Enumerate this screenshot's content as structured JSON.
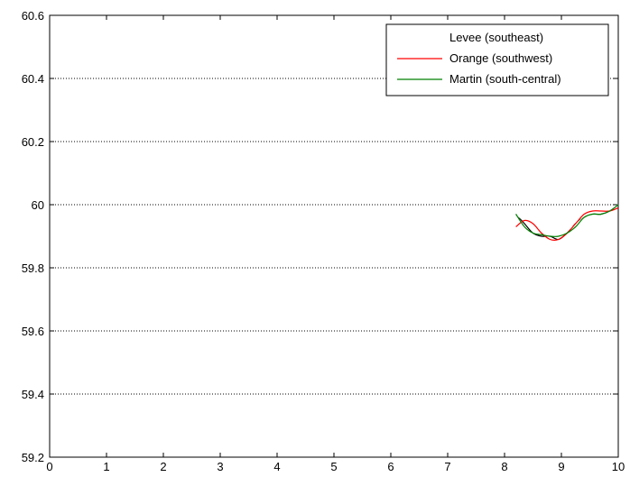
{
  "chart_data": {
    "type": "line",
    "title": "",
    "xlabel": "",
    "ylabel": "",
    "xlim": [
      0,
      10
    ],
    "ylim": [
      59.2,
      60.6
    ],
    "x_ticks": [
      0,
      1,
      2,
      3,
      4,
      5,
      6,
      7,
      8,
      9,
      10
    ],
    "x_tick_labels": [
      "0",
      "1",
      "2",
      "3",
      "4",
      "5",
      "6",
      "7",
      "8",
      "9",
      "10"
    ],
    "y_ticks": [
      59.2,
      59.4,
      59.6,
      59.8,
      60,
      60.2,
      60.4,
      60.6
    ],
    "y_tick_labels": [
      "59.2",
      "59.4",
      "59.6",
      "59.8",
      "60",
      "60.2",
      "60.4",
      "60.6"
    ],
    "grid": "horizontal-dotted",
    "legend_position": "top-right",
    "series": [
      {
        "name": "Levee (southeast)",
        "color": "#ffffff",
        "x": [
          8.2,
          8.4,
          8.6,
          8.8,
          9.0,
          9.2,
          9.4,
          9.6,
          9.8,
          10.0
        ],
        "y": [
          59.97,
          59.94,
          59.91,
          59.9,
          59.91,
          59.93,
          59.96,
          59.97,
          59.98,
          60.0
        ]
      },
      {
        "name": "Orange (southwest)",
        "color": "#ff0000",
        "x": [
          8.2,
          8.35,
          8.5,
          8.65,
          8.8,
          8.95,
          9.1,
          9.25,
          9.4,
          9.55,
          9.7,
          9.85,
          10.0
        ],
        "y": [
          59.93,
          59.95,
          59.94,
          59.91,
          59.89,
          59.89,
          59.91,
          59.94,
          59.97,
          59.98,
          59.98,
          59.98,
          59.99
        ]
      },
      {
        "name": "Martin (south-central)",
        "color": "#008000",
        "x": [
          8.2,
          8.35,
          8.5,
          8.65,
          8.8,
          8.95,
          9.1,
          9.25,
          9.4,
          9.55,
          9.7,
          9.85,
          10.0
        ],
        "y": [
          59.97,
          59.93,
          59.91,
          59.905,
          59.9,
          59.9,
          59.91,
          59.93,
          59.96,
          59.97,
          59.97,
          59.98,
          60.0
        ]
      },
      {
        "name": "",
        "color": "#000000",
        "x": [
          8.2,
          8.35,
          8.5,
          8.65,
          8.8,
          8.95,
          9.1,
          9.25,
          9.4,
          9.55,
          9.7,
          9.85,
          10.0
        ],
        "y": [
          59.97,
          59.94,
          59.91,
          59.9,
          59.9,
          59.89,
          59.91,
          59.94,
          59.96,
          59.97,
          59.97,
          59.98,
          60.0
        ]
      }
    ]
  }
}
